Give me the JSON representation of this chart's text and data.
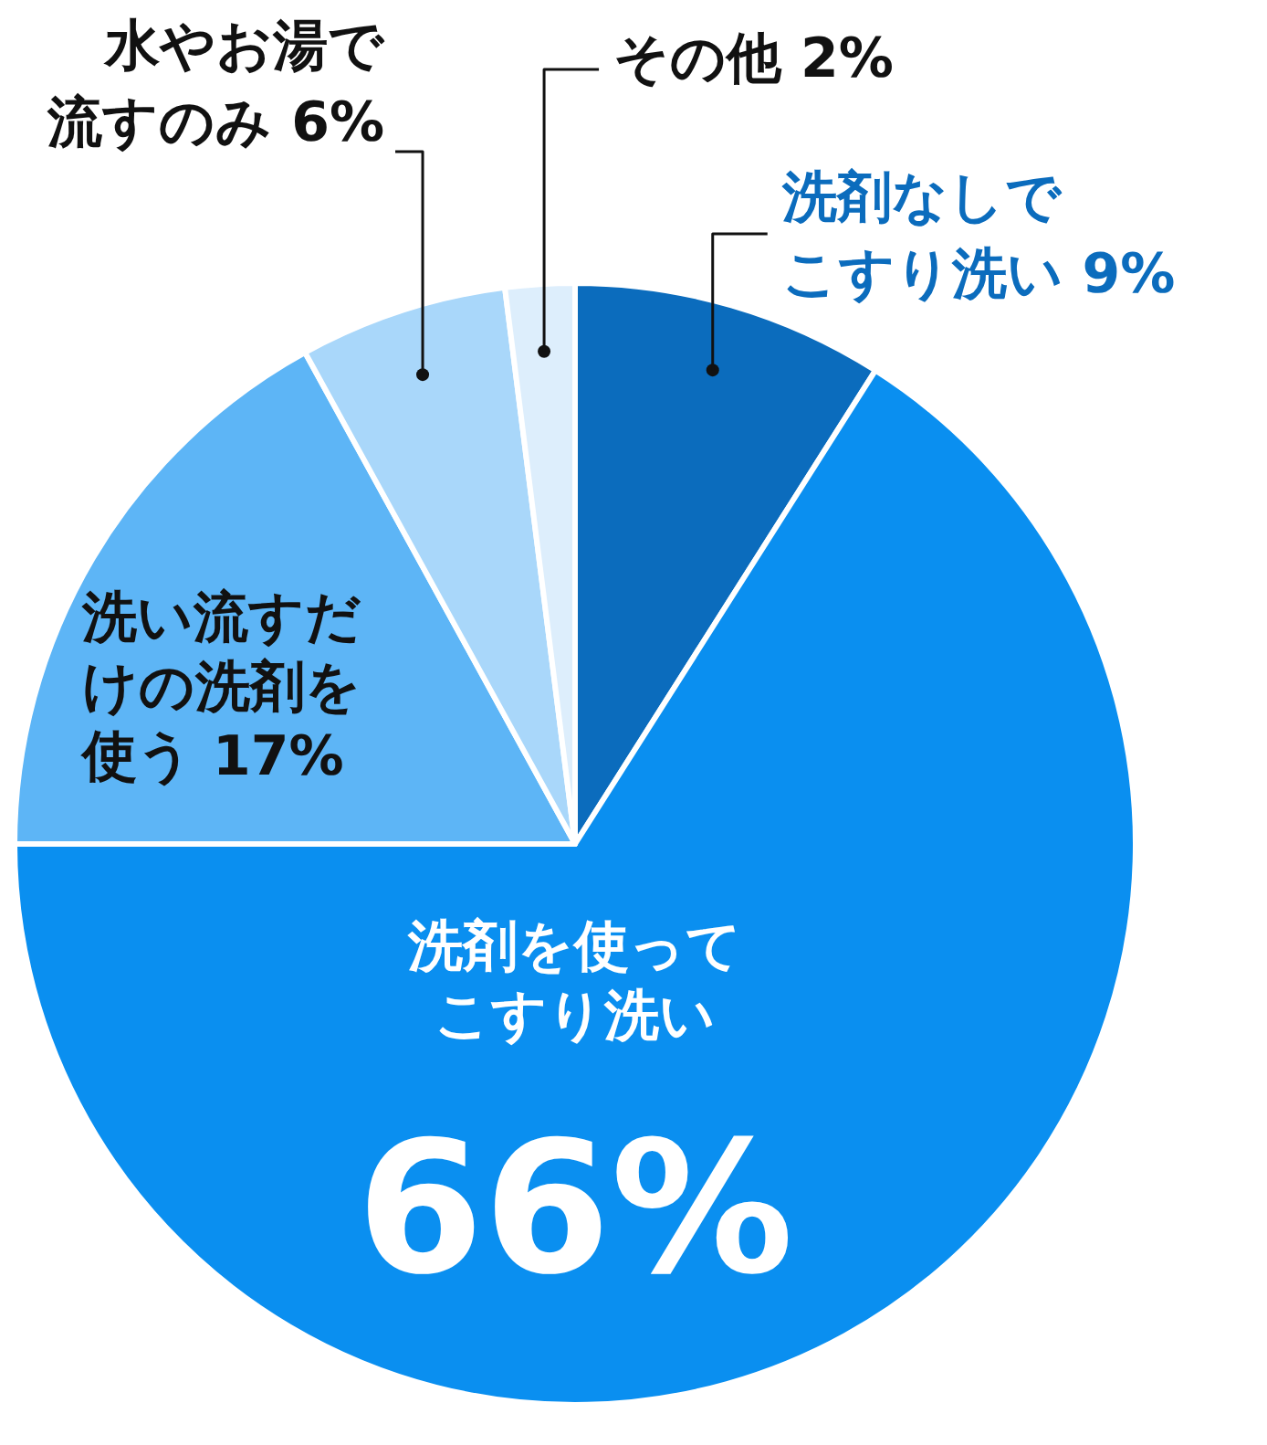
{
  "chart_data": {
    "type": "pie",
    "categories": [
      "洗剤なしでこすり洗い",
      "洗剤を使ってこすり洗い",
      "洗い流すだけの洗剤を使う",
      "水やお湯で流すのみ",
      "その他"
    ],
    "values": [
      9,
      66,
      17,
      6,
      2
    ],
    "value_labels": [
      "9%",
      "66%",
      "17%",
      "6%",
      "2%"
    ],
    "colors": [
      "#0b6cbd",
      "#0a8ff0",
      "#5db5f6",
      "#a9d7fa",
      "#ddeefc"
    ],
    "legend": false
  }
}
